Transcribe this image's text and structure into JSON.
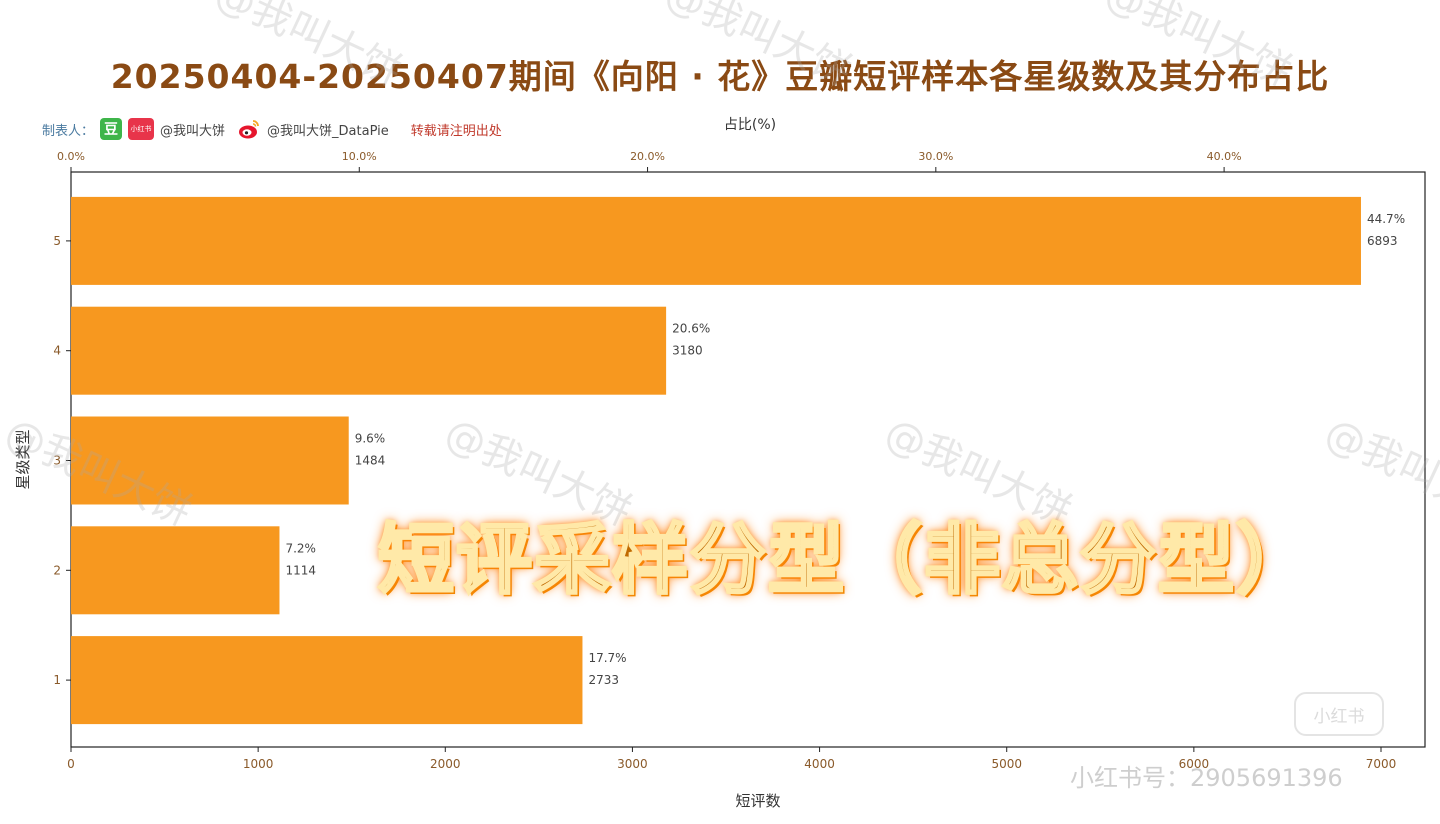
{
  "title": "20250404-20250407期间《向阳 · 花》豆瓣短评样本各星级数及其分布占比",
  "credit": {
    "prefix": "制表人：",
    "douban_logo": "豆",
    "xhs_logo": "小红书",
    "handle_xhs": "@我叫大饼",
    "handle_weibo": "@我叫大饼_DataPie",
    "repost_note": "转载请注明出处"
  },
  "overlay_text": "短评采样分型（非总分型）",
  "watermark_text": "@我叫大饼",
  "xhs_id": "小红书号：2905691396",
  "xhs_badge": "小红书",
  "colors": {
    "bar": "#f7981f",
    "title": "#8a4a14",
    "axis_tick": "#8a5a2a",
    "axis_label": "#333333"
  },
  "chart_data": {
    "type": "bar",
    "orientation": "horizontal",
    "categories": [
      "5",
      "4",
      "3",
      "2",
      "1"
    ],
    "values": [
      6893,
      3180,
      1484,
      1114,
      2733
    ],
    "percent_labels": [
      "44.7%",
      "20.6%",
      "9.6%",
      "7.2%",
      "17.7%"
    ],
    "xlabel": "短评数",
    "ylabel": "星级类型",
    "top_xlabel": "占比(%)",
    "xlim": [
      0,
      7200
    ],
    "x_ticks": [
      0,
      1000,
      2000,
      3000,
      4000,
      5000,
      6000,
      7000
    ],
    "top_ticks": [
      "0.0%",
      "10.0%",
      "20.0%",
      "30.0%",
      "40.0%"
    ],
    "top_tick_values": [
      0,
      10,
      20,
      30,
      40
    ],
    "grid": false
  }
}
